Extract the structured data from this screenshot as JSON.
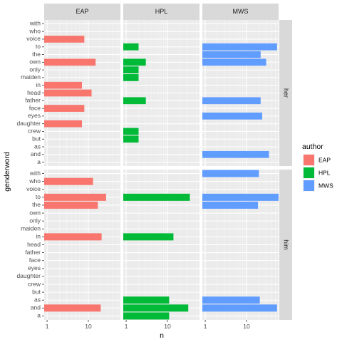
{
  "chart_data": {
    "type": "bar",
    "orientation": "horizontal",
    "xlabel": "n",
    "ylabel": "genderword",
    "x_scale": "log10",
    "xlim": [
      0.85,
      60
    ],
    "x_ticks": [
      1,
      10
    ],
    "x_tick_labels": [
      "1",
      "10"
    ],
    "grid": true,
    "legend": {
      "title": "author",
      "placement": "right"
    },
    "columns": [
      "EAP",
      "HPL",
      "MWS"
    ],
    "rows": [
      "her",
      "him"
    ],
    "categories": [
      "with",
      "who",
      "voice",
      "to",
      "the",
      "own",
      "only",
      "maiden",
      "in",
      "head",
      "father",
      "face",
      "eyes",
      "daughter",
      "crew",
      "but",
      "as",
      "and",
      "a"
    ],
    "series": [
      {
        "name": "EAP",
        "color": "#F8766D"
      },
      {
        "name": "HPL",
        "color": "#00BA38"
      },
      {
        "name": "MWS",
        "color": "#619CFF"
      }
    ],
    "panels": [
      {
        "row": "her",
        "author": "EAP",
        "values": {
          "voice": 8,
          "own": 15,
          "in": 7,
          "head": 12,
          "face": 8,
          "daughter": 7
        }
      },
      {
        "row": "her",
        "author": "HPL",
        "values": {
          "to": 2,
          "own": 3,
          "only": 2,
          "maiden": 2,
          "father": 3,
          "crew": 2,
          "but": 2
        }
      },
      {
        "row": "her",
        "author": "MWS",
        "values": {
          "to": 55,
          "the": 22,
          "own": 30,
          "father": 22,
          "eyes": 24,
          "and": 35
        }
      },
      {
        "row": "him",
        "author": "EAP",
        "values": {
          "who": 13,
          "to": 27,
          "the": 17,
          "in": 21,
          "and": 20
        }
      },
      {
        "row": "him",
        "author": "HPL",
        "values": {
          "to": 35,
          "in": 14,
          "as": 11,
          "and": 32,
          "a": 11
        }
      },
      {
        "row": "him",
        "author": "MWS",
        "values": {
          "with": 20,
          "to": 60,
          "the": 19,
          "as": 21,
          "and": 55
        }
      }
    ]
  }
}
